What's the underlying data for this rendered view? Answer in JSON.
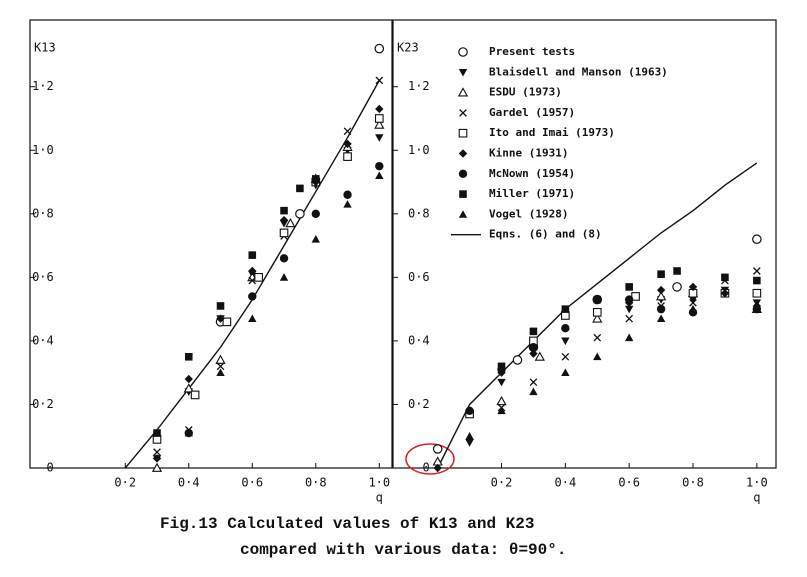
{
  "chart_data": [
    {
      "type": "scatter",
      "y_label": "K13",
      "x_label": "q",
      "xlim": [
        -0.1,
        1.04
      ],
      "ylim": [
        0,
        1.41
      ],
      "xticks": [
        {
          "value": 0.2,
          "label": "0·2"
        },
        {
          "value": 0.4,
          "label": "0·4"
        },
        {
          "value": 0.6,
          "label": "0·6"
        },
        {
          "value": 0.8,
          "label": "0·8"
        },
        {
          "value": 1.0,
          "label": "1·0"
        }
      ],
      "yticks": [
        0,
        {
          "value": 0.2,
          "label": "0·2"
        },
        {
          "value": 0.4,
          "label": "0·4"
        },
        {
          "value": 0.6,
          "label": "0·6"
        },
        {
          "value": 0.8,
          "label": "0·8"
        },
        {
          "value": 1.0,
          "label": "1·0"
        },
        {
          "value": 1.2,
          "label": "1·2"
        }
      ],
      "color": "#111111",
      "series": [
        {
          "marker": "circle-open",
          "x": [
            0.5,
            0.75,
            1.0
          ],
          "values": [
            0.46,
            0.8,
            1.32
          ]
        },
        {
          "marker": "triangle-down",
          "x": [
            0.3,
            0.4,
            0.5,
            0.6,
            0.7,
            0.8,
            0.9,
            1.0
          ],
          "values": [
            0.03,
            0.24,
            0.47,
            0.61,
            0.77,
            0.89,
            1.0,
            1.04
          ]
        },
        {
          "marker": "triangle-open",
          "x": [
            0.3,
            0.4,
            0.5,
            0.6,
            0.72,
            0.8,
            0.9,
            1.0
          ],
          "values": [
            0.0,
            0.25,
            0.34,
            0.6,
            0.77,
            0.91,
            1.01,
            1.08
          ]
        },
        {
          "marker": "cross",
          "x": [
            0.3,
            0.4,
            0.5,
            0.6,
            0.7,
            0.8,
            0.9,
            1.0
          ],
          "values": [
            0.05,
            0.12,
            0.32,
            0.59,
            0.73,
            0.9,
            1.06,
            1.22
          ]
        },
        {
          "marker": "square-open",
          "x": [
            0.3,
            0.42,
            0.52,
            0.62,
            0.7,
            0.8,
            0.9,
            1.0
          ],
          "values": [
            0.09,
            0.23,
            0.46,
            0.6,
            0.74,
            0.9,
            0.98,
            1.1
          ]
        },
        {
          "marker": "diamond",
          "x": [
            0.3,
            0.4,
            0.5,
            0.6,
            0.7,
            0.8,
            0.9,
            1.0
          ],
          "values": [
            0.03,
            0.28,
            0.47,
            0.62,
            0.78,
            0.9,
            1.02,
            1.13
          ]
        },
        {
          "marker": "circle",
          "x": [
            0.4,
            0.6,
            0.7,
            0.8,
            0.9,
            1.0
          ],
          "values": [
            0.11,
            0.54,
            0.66,
            0.8,
            0.86,
            0.95
          ]
        },
        {
          "marker": "square",
          "x": [
            0.3,
            0.4,
            0.5,
            0.6,
            0.7,
            0.75,
            0.8
          ],
          "values": [
            0.11,
            0.35,
            0.51,
            0.67,
            0.81,
            0.88,
            0.91
          ]
        },
        {
          "marker": "triangle",
          "x": [
            0.4,
            0.5,
            0.6,
            0.7,
            0.8,
            0.9,
            1.0
          ],
          "values": [
            0.11,
            0.3,
            0.47,
            0.6,
            0.72,
            0.83,
            0.92
          ]
        }
      ],
      "curve": {
        "x": [
          0.2,
          0.3,
          0.4,
          0.5,
          0.6,
          0.7,
          0.8,
          0.9,
          1.0
        ],
        "values": [
          0,
          0.12,
          0.25,
          0.38,
          0.53,
          0.7,
          0.87,
          1.04,
          1.22
        ]
      }
    },
    {
      "type": "scatter",
      "y_label": "K23",
      "x_label": "q",
      "legend": "upper left",
      "xlim": [
        -0.14,
        1.06
      ],
      "ylim": [
        0,
        1.41
      ],
      "xticks": [
        {
          "value": 0.2,
          "label": "0·2"
        },
        {
          "value": 0.4,
          "label": "0·4"
        },
        {
          "value": 0.6,
          "label": "0·6"
        },
        {
          "value": 0.8,
          "label": "0·8"
        },
        {
          "value": 1.0,
          "label": "1·0"
        }
      ],
      "yticks": [
        0,
        {
          "value": 0.2,
          "label": "0·2"
        },
        {
          "value": 0.4,
          "label": "0·4"
        },
        {
          "value": 0.6,
          "label": "0·6"
        },
        {
          "value": 0.8,
          "label": "0·8"
        },
        {
          "value": 1.0,
          "label": "1·0"
        },
        {
          "value": 1.2,
          "label": "1·2"
        }
      ],
      "color": "#111111",
      "series": [
        {
          "name": "Present tests",
          "marker": "circle-open",
          "x": [
            0,
            0.25,
            0.3,
            0.5,
            0.75,
            1.0
          ],
          "values": [
            0.06,
            0.34,
            0.38,
            0.53,
            0.57,
            0.72
          ]
        },
        {
          "name": "Blaisdell and Manson (1963)",
          "marker": "triangle-down",
          "x": [
            0.1,
            0.2,
            0.3,
            0.4,
            0.5,
            0.6,
            0.7,
            0.8,
            0.9,
            1.0
          ],
          "values": [
            0.08,
            0.27,
            0.37,
            0.4,
            0.48,
            0.5,
            0.53,
            0.53,
            0.56,
            0.52
          ]
        },
        {
          "name": "ESDU (1973)",
          "marker": "triangle-open",
          "x": [
            0,
            0.2,
            0.32,
            0.5,
            0.7,
            0.8,
            1.0
          ],
          "values": [
            0.02,
            0.21,
            0.35,
            0.47,
            0.54,
            0.55,
            0.5
          ]
        },
        {
          "name": "Gardel (1957)",
          "marker": "cross",
          "x": [
            0.2,
            0.3,
            0.4,
            0.5,
            0.6,
            0.7,
            0.8,
            0.9,
            1.0
          ],
          "values": [
            0.19,
            0.27,
            0.35,
            0.41,
            0.47,
            0.51,
            0.52,
            0.59,
            0.62
          ]
        },
        {
          "name": "Ito and Imai (1973)",
          "marker": "square-open",
          "x": [
            0.1,
            0.3,
            0.4,
            0.5,
            0.62,
            0.8,
            0.9,
            1.0
          ],
          "values": [
            0.17,
            0.4,
            0.48,
            0.49,
            0.54,
            0.55,
            0.55,
            0.55
          ]
        },
        {
          "name": "Kinne (1931)",
          "marker": "diamond",
          "x": [
            0,
            0.1,
            0.2,
            0.3,
            0.4,
            0.6,
            0.7,
            0.8,
            0.9,
            1.0
          ],
          "values": [
            0.0,
            0.09,
            0.3,
            0.36,
            0.44,
            0.52,
            0.56,
            0.57,
            0.55,
            0.51
          ]
        },
        {
          "name": "McNown (1954)",
          "marker": "circle",
          "x": [
            0.1,
            0.2,
            0.3,
            0.4,
            0.6,
            0.7,
            0.8,
            1.0
          ],
          "values": [
            0.18,
            0.31,
            0.38,
            0.44,
            0.53,
            0.5,
            0.49,
            0.5
          ]
        },
        {
          "name": "Miller (1971)",
          "marker": "square",
          "x": [
            0.2,
            0.3,
            0.4,
            0.5,
            0.6,
            0.7,
            0.75,
            0.9,
            1.0
          ],
          "values": [
            0.32,
            0.43,
            0.5,
            0.53,
            0.57,
            0.61,
            0.62,
            0.6,
            0.59
          ]
        },
        {
          "name": "Vogel (1928)",
          "marker": "triangle",
          "x": [
            0.1,
            0.2,
            0.3,
            0.4,
            0.5,
            0.6,
            0.7,
            0.8,
            1.0
          ],
          "values": [
            0.1,
            0.18,
            0.24,
            0.3,
            0.35,
            0.41,
            0.47,
            0.5,
            0.51
          ]
        }
      ],
      "curve": {
        "name": "Eqns. (6) and (8)",
        "x": [
          0,
          0.05,
          0.1,
          0.2,
          0.3,
          0.4,
          0.5,
          0.6,
          0.7,
          0.8,
          0.9,
          1.0
        ],
        "values": [
          0,
          0.1,
          0.2,
          0.3,
          0.4,
          0.5,
          0.58,
          0.66,
          0.74,
          0.81,
          0.89,
          0.96
        ]
      }
    }
  ],
  "caption": [
    "Fig.13  Calculated values of K13 and K23",
    "compared with various data: θ=90°."
  ]
}
